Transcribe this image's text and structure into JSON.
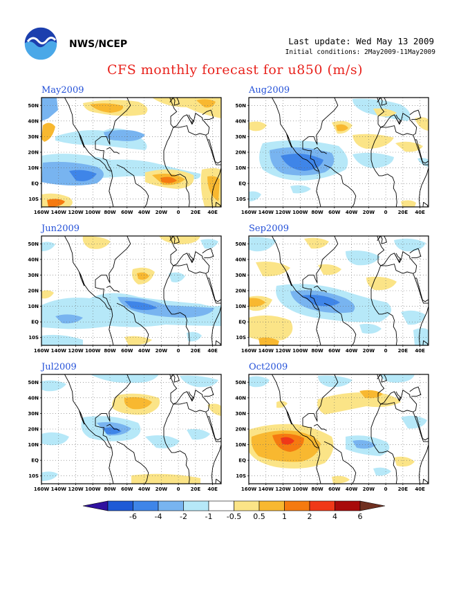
{
  "header": {
    "agency": "NWS/NCEP",
    "last_update": "Last update: Wed May 13 2009",
    "initial_conditions": "Initial conditions: 2May2009-11May2009",
    "title": "CFS monthly forecast for u850 (m/s)"
  },
  "axes": {
    "lon_labels": [
      "160W",
      "140W",
      "120W",
      "100W",
      "80W",
      "60W",
      "40W",
      "20W",
      "0",
      "20E",
      "40E"
    ],
    "lat_labels": [
      "50N",
      "40N",
      "30N",
      "20N",
      "10N",
      "EQ",
      "10S"
    ],
    "lon_range": [
      -160,
      50
    ],
    "lat_range": [
      -15,
      55
    ]
  },
  "panels": [
    {
      "title": "May2009"
    },
    {
      "title": "Aug2009"
    },
    {
      "title": "Jun2009"
    },
    {
      "title": "Sep2009"
    },
    {
      "title": "Jul2009"
    },
    {
      "title": "Oct2009"
    }
  ],
  "colorbar": {
    "labels": [
      "-6",
      "-4",
      "-2",
      "-1",
      "-0.5",
      "0.5",
      "1",
      "2",
      "4",
      "6"
    ],
    "colors": [
      "#3012a0",
      "#1f5ad6",
      "#3f85e8",
      "#78b4f0",
      "#b6e8f8",
      "#ffffff",
      "#fbe487",
      "#f8b830",
      "#f57a10",
      "#f03818",
      "#a80a0a",
      "#703020"
    ]
  },
  "shading_colors": {
    "pos1": "#fbe487",
    "pos2": "#f8b830",
    "pos3": "#f57a10",
    "pos4": "#f03818",
    "neg1": "#b6e8f8",
    "neg2": "#78b4f0",
    "neg3": "#3f85e8"
  }
}
